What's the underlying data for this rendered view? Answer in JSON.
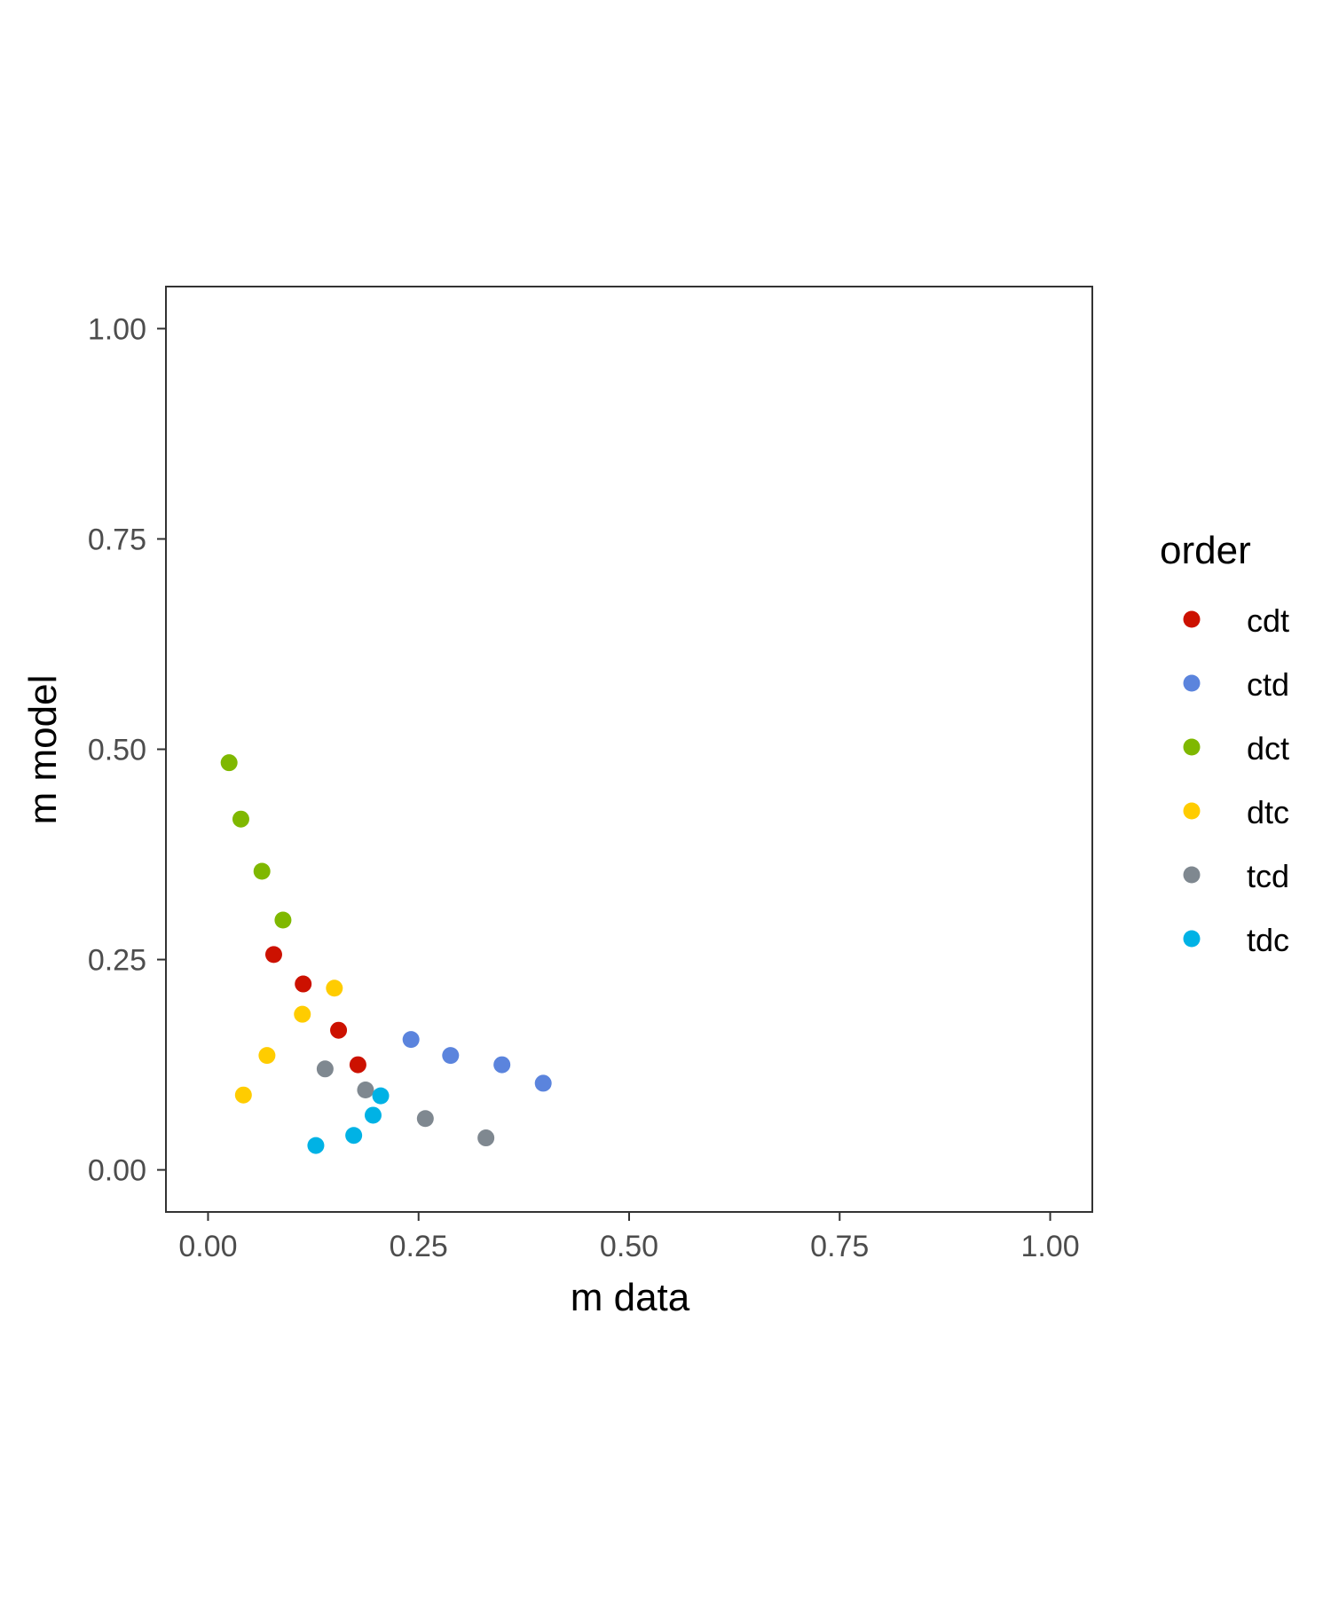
{
  "chart_data": {
    "type": "scatter",
    "title": "",
    "xlabel": "m data",
    "ylabel": "m model",
    "xlim": [
      -0.05,
      1.05
    ],
    "ylim": [
      -0.05,
      1.05
    ],
    "x_ticks": [
      0.0,
      0.25,
      0.5,
      0.75,
      1.0
    ],
    "y_ticks": [
      0.0,
      0.25,
      0.5,
      0.75,
      1.0
    ],
    "x_tick_labels": [
      "0.00",
      "0.25",
      "0.50",
      "0.75",
      "1.00"
    ],
    "y_tick_labels": [
      "0.00",
      "0.25",
      "0.50",
      "0.75",
      "1.00"
    ],
    "grid": false,
    "legend": {
      "title": "order",
      "position": "right"
    },
    "series": [
      {
        "name": "cdt",
        "color": "#CC1100",
        "points": [
          [
            0.078,
            0.256
          ],
          [
            0.113,
            0.221
          ],
          [
            0.155,
            0.166
          ],
          [
            0.178,
            0.125
          ]
        ]
      },
      {
        "name": "ctd",
        "color": "#5B84DD",
        "points": [
          [
            0.241,
            0.155
          ],
          [
            0.288,
            0.136
          ],
          [
            0.349,
            0.125
          ],
          [
            0.398,
            0.103
          ]
        ]
      },
      {
        "name": "dct",
        "color": "#7FB800",
        "points": [
          [
            0.025,
            0.484
          ],
          [
            0.039,
            0.417
          ],
          [
            0.064,
            0.355
          ],
          [
            0.089,
            0.297
          ]
        ]
      },
      {
        "name": "dtc",
        "color": "#FFCC00",
        "points": [
          [
            0.042,
            0.089
          ],
          [
            0.07,
            0.136
          ],
          [
            0.112,
            0.185
          ],
          [
            0.15,
            0.216
          ]
        ]
      },
      {
        "name": "tcd",
        "color": "#7F8890",
        "points": [
          [
            0.139,
            0.12
          ],
          [
            0.187,
            0.095
          ],
          [
            0.258,
            0.061
          ],
          [
            0.33,
            0.038
          ]
        ]
      },
      {
        "name": "tdc",
        "color": "#00B2E5",
        "points": [
          [
            0.128,
            0.029
          ],
          [
            0.173,
            0.041
          ],
          [
            0.196,
            0.065
          ],
          [
            0.205,
            0.088
          ]
        ]
      }
    ]
  }
}
